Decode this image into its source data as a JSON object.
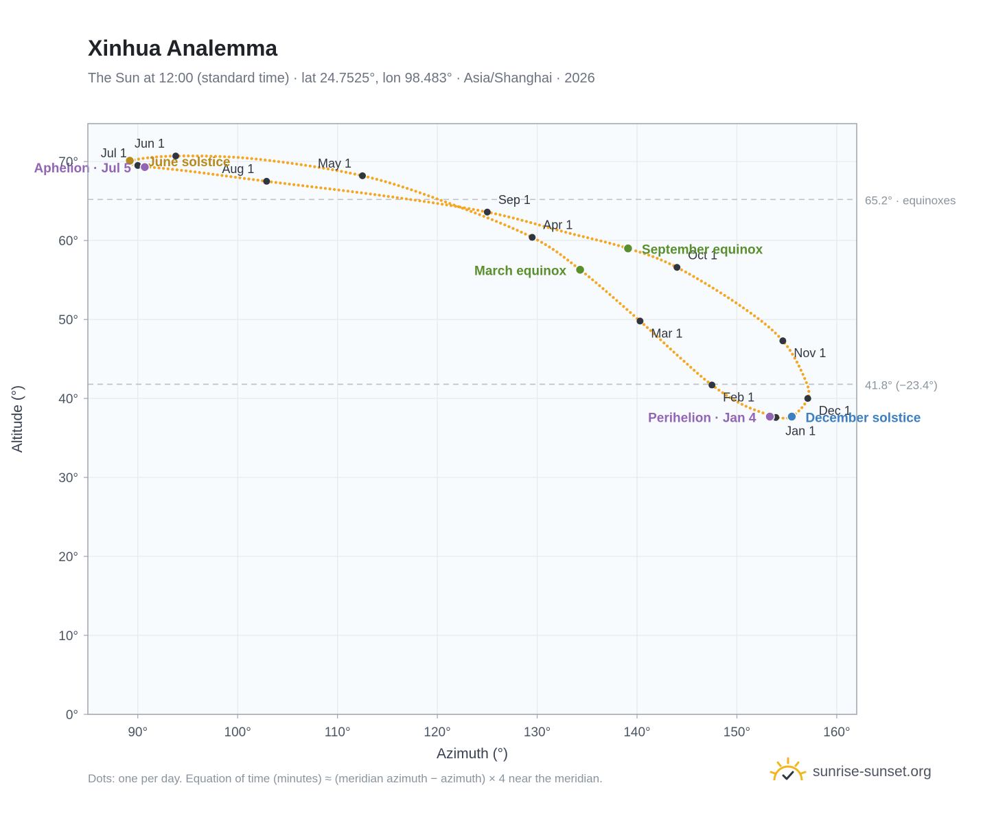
{
  "title": "Xinhua Analemma",
  "subtitle": "The Sun at 12:00 (standard time) · lat 24.7525°, lon 98.483° · Asia/Shanghai · 2026",
  "footnote": "Dots: one per day. Equation of time (minutes) ≈ (meridian azimuth − azimuth) × 4 near the meridian.",
  "brand": {
    "name": "sunrise-sunset.org",
    "logo_icon": "sun-check-icon"
  },
  "colors": {
    "curve": "#f5a623",
    "month_dot": "#2f3640",
    "equinox": "#5a8f2e",
    "june_solstice": "#b88a1e",
    "december_solstice": "#3d7fc1",
    "apsis": "#9265b5",
    "reference_line": "#b8c0c8",
    "plot_bg": "#f8fbfd",
    "grid": "#e4e9ee",
    "axis": "#9aa5b1"
  },
  "chart_data": {
    "type": "scatter",
    "xlabel": "Azimuth (°)",
    "ylabel": "Altitude (°)",
    "xlim": [
      85,
      162
    ],
    "ylim": [
      0,
      74.8
    ],
    "x_ticks": [
      90,
      100,
      110,
      120,
      130,
      140,
      150,
      160
    ],
    "y_ticks": [
      0,
      10,
      20,
      30,
      40,
      50,
      60,
      70
    ],
    "x_tick_labels": [
      "90°",
      "100°",
      "110°",
      "120°",
      "130°",
      "140°",
      "150°",
      "160°"
    ],
    "y_tick_labels": [
      "0°",
      "10°",
      "20°",
      "30°",
      "40°",
      "50°",
      "60°",
      "70°"
    ],
    "grid": true,
    "reference_lines": [
      {
        "y": 65.2,
        "label": "65.2° · equinoxes"
      },
      {
        "y": 41.8,
        "label": "41.8° (−23.4°)"
      }
    ],
    "path_anchors": [
      {
        "az": 153.9,
        "alt": 37.6
      },
      {
        "az": 150.6,
        "alt": 39.2
      },
      {
        "az": 147.5,
        "alt": 41.7
      },
      {
        "az": 144.1,
        "alt": 45.4
      },
      {
        "az": 140.3,
        "alt": 49.8
      },
      {
        "az": 134.3,
        "alt": 56.3
      },
      {
        "az": 129.5,
        "alt": 60.4
      },
      {
        "az": 121.0,
        "alt": 64.8
      },
      {
        "az": 112.5,
        "alt": 68.2
      },
      {
        "az": 102.0,
        "alt": 70.3
      },
      {
        "az": 93.8,
        "alt": 70.7
      },
      {
        "az": 89.2,
        "alt": 70.1
      },
      {
        "az": 90.0,
        "alt": 69.5
      },
      {
        "az": 95.0,
        "alt": 68.8
      },
      {
        "az": 102.9,
        "alt": 67.5
      },
      {
        "az": 115.0,
        "alt": 65.6
      },
      {
        "az": 125.0,
        "alt": 63.6
      },
      {
        "az": 133.0,
        "alt": 61.0
      },
      {
        "az": 139.1,
        "alt": 59.0
      },
      {
        "az": 144.0,
        "alt": 56.6
      },
      {
        "az": 150.5,
        "alt": 51.6
      },
      {
        "az": 154.6,
        "alt": 47.3
      },
      {
        "az": 156.8,
        "alt": 42.5
      },
      {
        "az": 157.1,
        "alt": 40.0
      },
      {
        "az": 155.5,
        "alt": 37.7
      },
      {
        "az": 153.9,
        "alt": 37.6
      }
    ],
    "month_markers": [
      {
        "label": "Jan 1",
        "az": 153.9,
        "alt": 37.6
      },
      {
        "label": "Feb 1",
        "az": 147.5,
        "alt": 41.7
      },
      {
        "label": "Mar 1",
        "az": 140.3,
        "alt": 49.8
      },
      {
        "label": "Apr 1",
        "az": 129.5,
        "alt": 60.4
      },
      {
        "label": "May 1",
        "az": 112.5,
        "alt": 68.2
      },
      {
        "label": "Jun 1",
        "az": 93.8,
        "alt": 70.7
      },
      {
        "label": "Jul 1",
        "az": 90.0,
        "alt": 69.5
      },
      {
        "label": "Aug 1",
        "az": 102.9,
        "alt": 67.5
      },
      {
        "label": "Sep 1",
        "az": 125.0,
        "alt": 63.6
      },
      {
        "label": "Oct 1",
        "az": 144.0,
        "alt": 56.6
      },
      {
        "label": "Nov 1",
        "az": 154.6,
        "alt": 47.3
      },
      {
        "label": "Dec 1",
        "az": 157.1,
        "alt": 40.0
      }
    ],
    "events": [
      {
        "label": "March equinox",
        "az": 134.3,
        "alt": 56.3,
        "kind": "equinox"
      },
      {
        "label": "June solstice",
        "az": 89.2,
        "alt": 70.1,
        "kind": "june_solstice"
      },
      {
        "label": "September equinox",
        "az": 139.1,
        "alt": 59.0,
        "kind": "equinox"
      },
      {
        "label": "December solstice",
        "az": 155.5,
        "alt": 37.7,
        "kind": "december_solstice"
      },
      {
        "label": "Perihelion · Jan 4",
        "az": 153.3,
        "alt": 37.7,
        "kind": "apsis"
      },
      {
        "label": "Aphelion · Jul 5",
        "az": 90.7,
        "alt": 69.3,
        "kind": "apsis"
      }
    ]
  }
}
